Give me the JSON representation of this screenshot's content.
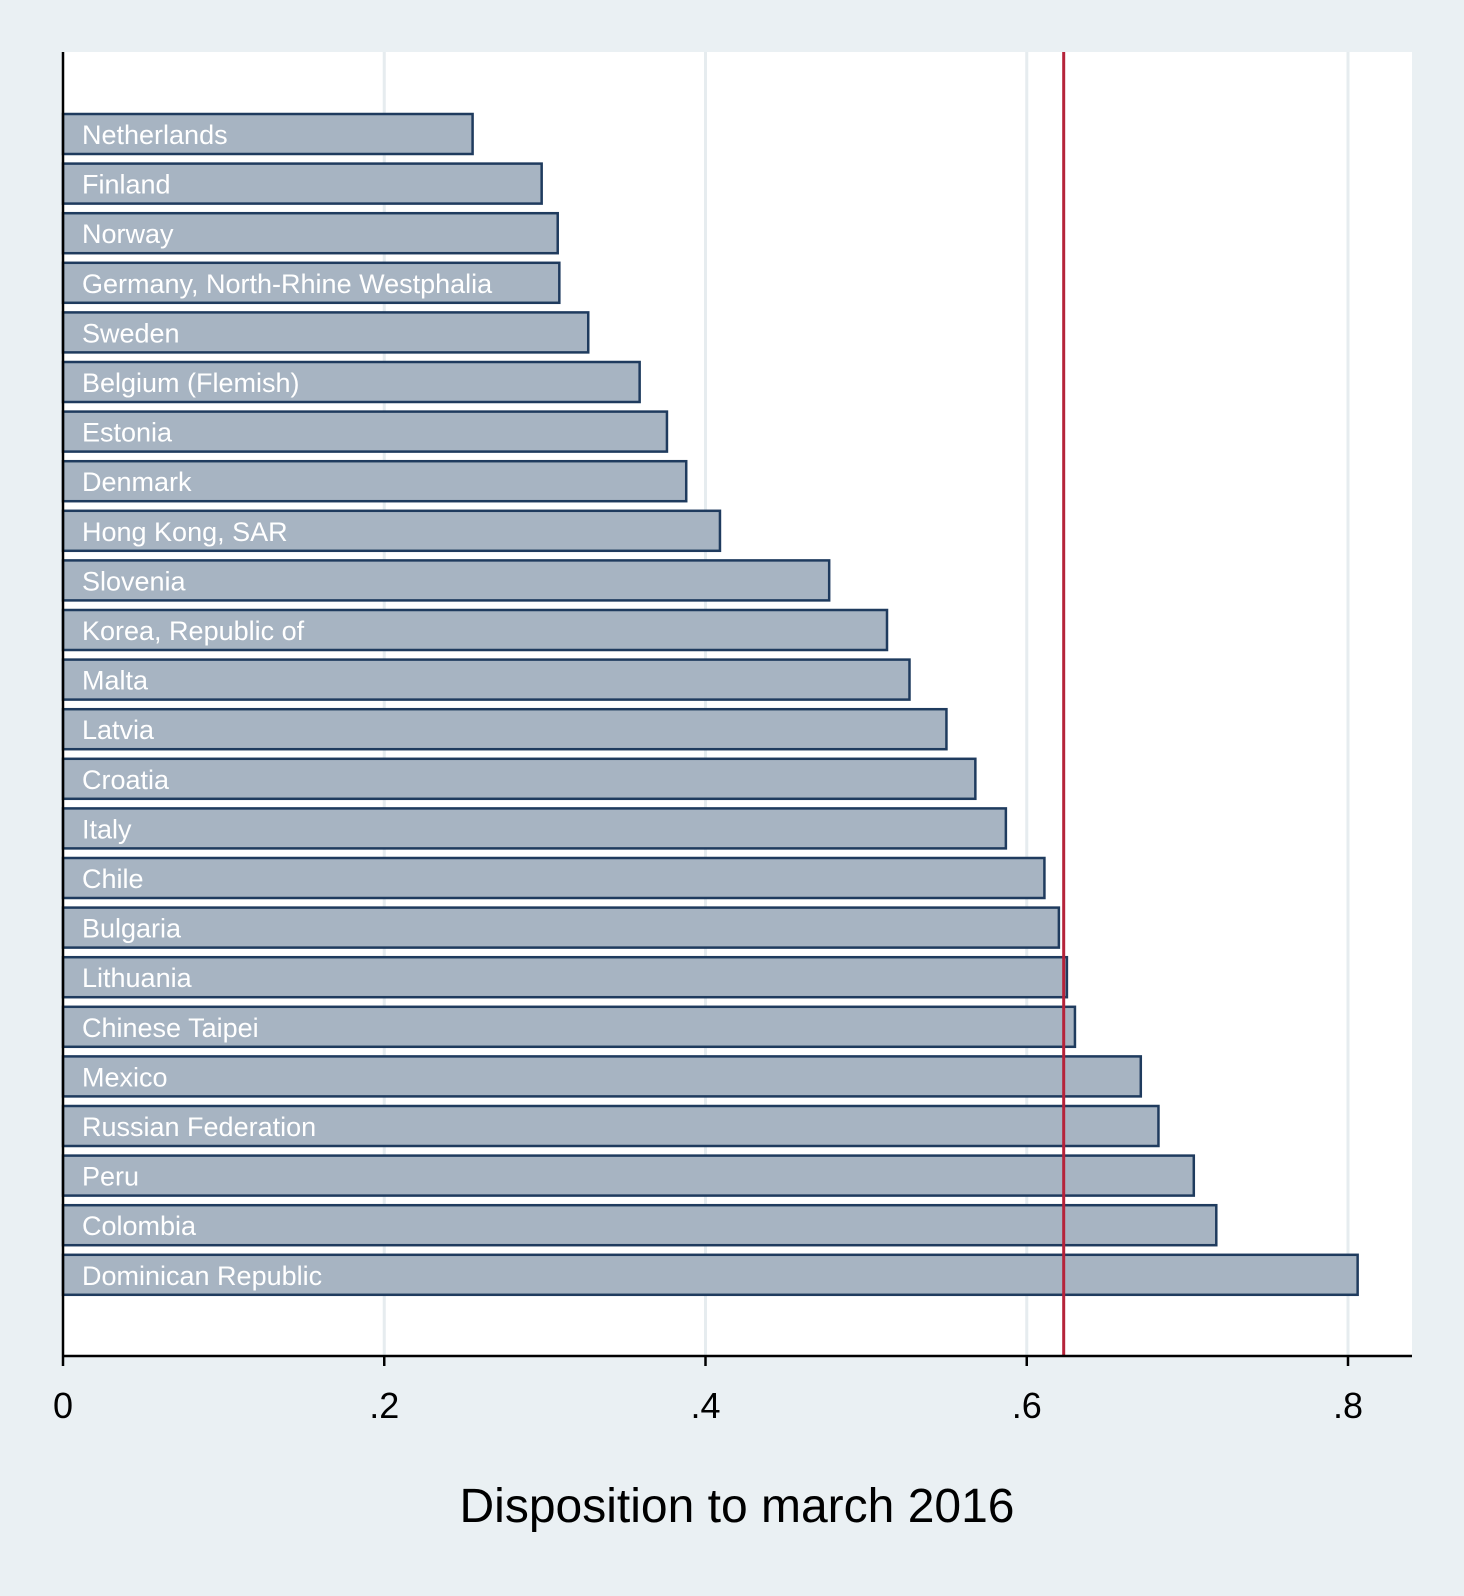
{
  "chart_data": {
    "type": "bar",
    "orientation": "horizontal",
    "categories": [
      "Netherlands",
      "Finland",
      "Norway",
      "Germany, North-Rhine Westphalia",
      "Sweden",
      "Belgium (Flemish)",
      "Estonia",
      "Denmark",
      "Hong Kong, SAR",
      "Slovenia",
      "Korea, Republic of",
      "Malta",
      "Latvia",
      "Croatia",
      "Italy",
      "Chile",
      "Bulgaria",
      "Lithuania",
      "Chinese Taipei",
      "Mexico",
      "Russian Federation",
      "Peru",
      "Colombia",
      "Dominican Republic"
    ],
    "values": [
      0.255,
      0.298,
      0.308,
      0.309,
      0.327,
      0.359,
      0.376,
      0.388,
      0.409,
      0.477,
      0.513,
      0.527,
      0.55,
      0.568,
      0.587,
      0.611,
      0.62,
      0.625,
      0.63,
      0.671,
      0.682,
      0.704,
      0.718,
      0.806
    ],
    "reference_line": {
      "value": 0.623,
      "color": "#b5233a"
    },
    "xlabel": "Disposition to march 2016",
    "ylabel": "",
    "xlim": [
      0,
      0.84
    ],
    "xticks": [
      0,
      0.2,
      0.4,
      0.6,
      0.8
    ],
    "xtick_labels": [
      "0",
      ".2",
      ".4",
      ".6",
      ".8"
    ],
    "grid": true,
    "legend": "none",
    "colors": {
      "bar_fill": "#a7b4c2",
      "bar_stroke": "#1f3b5e",
      "plot_background": "#ffffff",
      "page_background": "#eaf0f3",
      "grid": "#e6ecef",
      "label_text": "#ffffff"
    }
  }
}
